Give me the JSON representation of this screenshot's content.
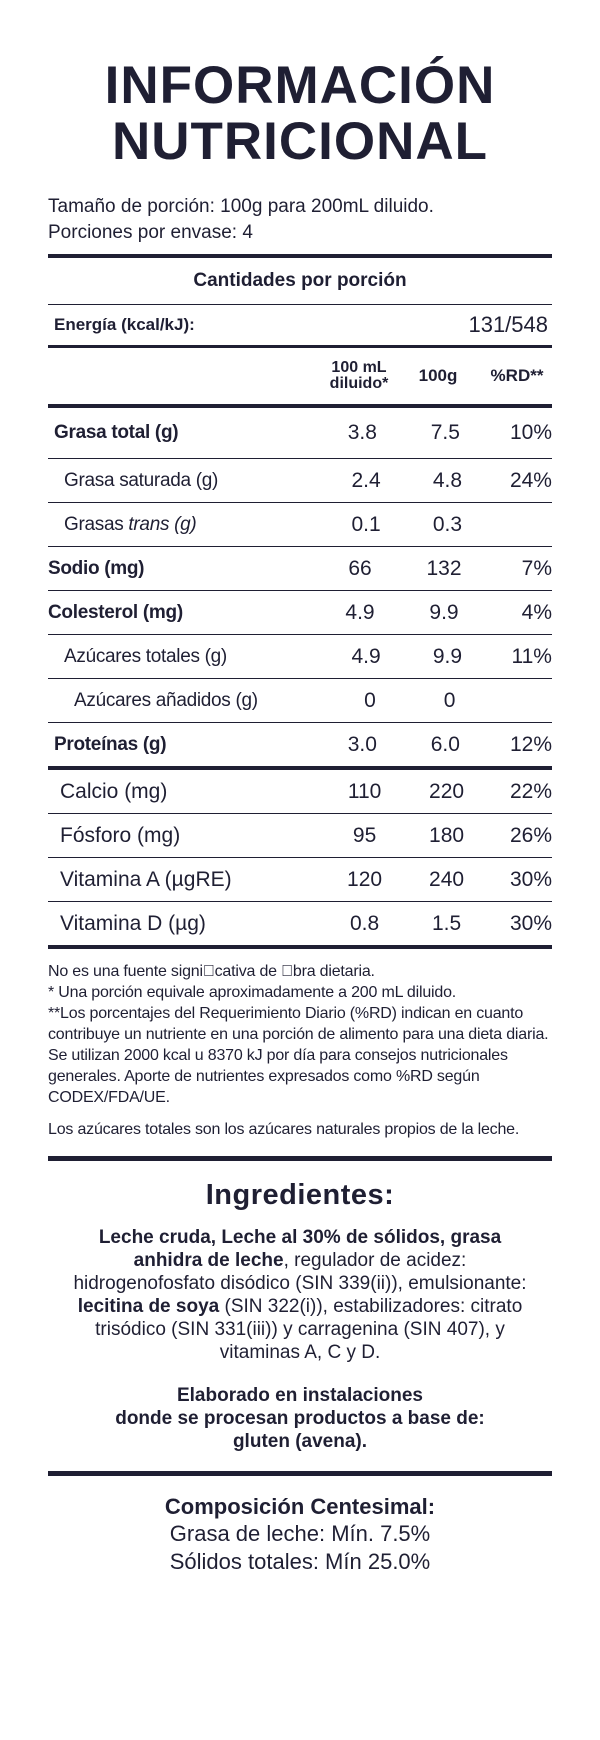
{
  "title_line1": "INFORMACIÓN",
  "title_line2": "NUTRICIONAL",
  "serving_size": "Tamaño de porción: 100g para 200mL diluido.",
  "servings_per_container": "Porciones por envase: 4",
  "amounts_header": "Cantidades por porción",
  "energy": {
    "label": "Energía (kcal/kJ):",
    "value": "131/548"
  },
  "columns": {
    "col1_line1": "100 mL",
    "col1_line2": "diluido*",
    "col2": "100g",
    "col3": "%RD**"
  },
  "rows": [
    {
      "name": "Grasa total (g)",
      "v1": "3.8",
      "v2": "7.5",
      "v3": "10%"
    },
    {
      "name": "Grasa saturada (g)",
      "v1": "2.4",
      "v2": "4.8",
      "v3": "24%"
    },
    {
      "name_prefix": "Grasas ",
      "name_italic": "trans (g)",
      "v1": "0.1",
      "v2": "0.3",
      "v3": ""
    },
    {
      "name": "Sodio (mg)",
      "v1": "66",
      "v2": "132",
      "v3": "7%"
    },
    {
      "name": "Colesterol (mg)",
      "v1": "4.9",
      "v2": "9.9",
      "v3": "4%"
    },
    {
      "name": "Azúcares totales (g)",
      "v1": "4.9",
      "v2": "9.9",
      "v3": "11%"
    },
    {
      "name": "Azúcares añadidos (g)",
      "v1": "0",
      "v2": "0",
      "v3": ""
    },
    {
      "name": "Proteínas (g)",
      "v1": "3.0",
      "v2": "6.0",
      "v3": "12%"
    },
    {
      "name": "Calcio (mg)",
      "v1": "110",
      "v2": "220",
      "v3": "22%"
    },
    {
      "name": "Fósforo (mg)",
      "v1": "95",
      "v2": "180",
      "v3": "26%"
    },
    {
      "name": "Vitamina A (µgRE)",
      "v1": "120",
      "v2": "240",
      "v3": "30%"
    },
    {
      "name": "Vitamina D (µg)",
      "v1": "0.8",
      "v2": "1.5",
      "v3": "30%"
    }
  ],
  "notes": {
    "fiber": "No es una fuente signi\u0000cativa de \u0000bra dietaria.",
    "footnote1": "* Una porción equivale aproximadamente a 200 mL diluido.",
    "footnote2": "**Los porcentajes del Requerimiento Diario (%RD) indican en cuanto contribuye un nutriente en una porción de alimento para una dieta diaria. Se utilizan 2000 kcal u 8370 kJ por día para consejos nutricionales generales. Aporte de nutrientes expresados como %RD según CODEX/FDA/UE.",
    "sugars": "Los azúcares totales son los azúcares naturales propios de la leche."
  },
  "ingredients": {
    "title": "Ingredientes:",
    "bold1": "Leche cruda, Leche al 30% de sólidos, grasa anhidra de leche",
    "text1": ", regulador de acidez: hidrogenofosfato disódico (SIN 339(ii)), emulsionante: ",
    "bold2": "lecitina de soya",
    "text2": " (SIN 322(i)), estabilizadores: citrato trisódico (SIN 331(iii)) y carragenina (SIN 407), y vitaminas A, C y D."
  },
  "allergen_line1": "Elaborado en instalaciones",
  "allergen_line2": "donde se procesan productos a base de:",
  "allergen_line3": "gluten (avena).",
  "composition": {
    "title": "Composición Centesimal:",
    "line1": "Grasa de leche: Mín. 7.5%",
    "line2": "Sólidos totales: Mín 25.0%"
  }
}
